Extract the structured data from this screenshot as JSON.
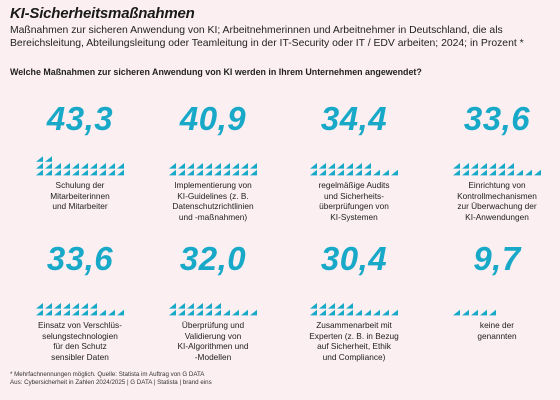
{
  "title": "KI-Sicherheitsmaßnahmen",
  "subtitle": "Maßnahmen zur sicheren Anwendung von KI; Arbeitnehmerinnen und Arbeitnehmer in Deutschland, die als Bereichsleitung, Abteilungsleitung oder Teamleitung in der IT-Security oder IT / EDV arbeiten; 2024; in Prozent *",
  "question": "Welche Maßnahmen zur sicheren Anwendung von KI werden in Ihrem Unternehmen angewendet?",
  "colors": {
    "accent": "#19a9c8",
    "background": "#fbeff1"
  },
  "chart_data": {
    "type": "bar",
    "title": "KI-Sicherheitsmaßnahmen",
    "unit": "Prozent",
    "categories": [
      "Schulung der\nMitarbeiterinnen\nund Mitarbeiter",
      "Implementierung von\nKI-Guidelines (z. B.\nDatenschutzrichtlinien\nund -maßnahmen)",
      "regelmäßige Audits\nund Sicherheits-\nüberprüfungen von\nKI-Systemen",
      "Einrichtung von\nKontrollmechanismen\nzur Überwachung der\nKI-Anwendungen",
      "Einsatz von Verschlüs-\nselungstechnologien\nfür den Schutz\nsensibler Daten",
      "Überprüfung und\nValidierung von\nKI-Algorithmen und\n-Modellen",
      "Zusammenarbeit mit\nExperten (z. B. in Bezug\nauf Sicherheit, Ethik\nund Compliance)",
      "keine der\ngenannten"
    ],
    "values": [
      43.3,
      40.9,
      34.4,
      33.6,
      33.6,
      32.0,
      30.4,
      9.7
    ],
    "value_labels": [
      "43,3",
      "40,9",
      "34,4",
      "33,6",
      "33,6",
      "32,0",
      "30,4",
      "9,7"
    ]
  },
  "footnote": [
    "* Mehrfachnennungen möglich. Quelle: Statista im Auftrag von G DATA",
    "Aus: Cybersicherheit in Zahlen 2024/2025 | G DATA | Statista | brand eins"
  ]
}
